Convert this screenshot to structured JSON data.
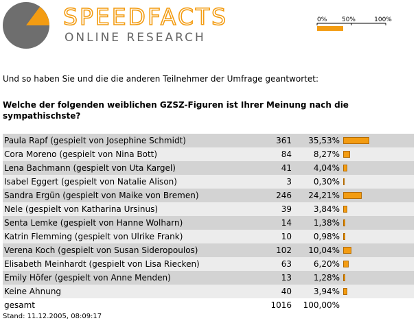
{
  "header": {
    "logo_title": "SPEEDFACTS",
    "logo_subtitle": "ONLINE RESEARCH",
    "scale": {
      "ticks": [
        {
          "value": 0,
          "label": "0%"
        },
        {
          "value": 50,
          "label": "50%"
        },
        {
          "value": 100,
          "label": "100%"
        }
      ]
    }
  },
  "intro": "Und so haben Sie und die die anderen Teilnehmer der Umfrage geantwortet:",
  "question": "Welche der folgenden weiblichen GZSZ-Figuren ist Ihrer Meinung nach die sympathischste?",
  "table": {
    "rows": [
      {
        "name": "Paula Rapf (gespielt von Josephine Schmidt)",
        "count": 361,
        "percent": {
          "value": 35.53,
          "label": "35,53%"
        }
      },
      {
        "name": "Cora Moreno (gespielt von Nina Bott)",
        "count": 84,
        "percent": {
          "value": 8.27,
          "label": "8,27%"
        }
      },
      {
        "name": "Lena Bachmann (gespielt von Uta Kargel)",
        "count": 41,
        "percent": {
          "value": 4.04,
          "label": "4,04%"
        }
      },
      {
        "name": "Isabel Eggert (gespielt von Natalie Alison)",
        "count": 3,
        "percent": {
          "value": 0.3,
          "label": "0,30%"
        }
      },
      {
        "name": "Sandra Ergün (gespielt von Maike von Bremen)",
        "count": 246,
        "percent": {
          "value": 24.21,
          "label": "24,21%"
        }
      },
      {
        "name": "Nele (gespielt von Katharina Ursinus)",
        "count": 39,
        "percent": {
          "value": 3.84,
          "label": "3,84%"
        }
      },
      {
        "name": "Senta Lemke (gespielt von Hanne Wolharn)",
        "count": 14,
        "percent": {
          "value": 1.38,
          "label": "1,38%"
        }
      },
      {
        "name": "Katrin Flemming (gespielt von Ulrike Frank)",
        "count": 10,
        "percent": {
          "value": 0.98,
          "label": "0,98%"
        }
      },
      {
        "name": "Verena Koch (gespielt von Susan Sideropoulos)",
        "count": 102,
        "percent": {
          "value": 10.04,
          "label": "10,04%"
        }
      },
      {
        "name": "Elisabeth Meinhardt (gespielt von Lisa Riecken)",
        "count": 63,
        "percent": {
          "value": 6.2,
          "label": "6,20%"
        }
      },
      {
        "name": "Emily Höfer (gespielt von Anne Menden)",
        "count": 13,
        "percent": {
          "value": 1.28,
          "label": "1,28%"
        }
      },
      {
        "name": "Keine Ahnung",
        "count": 40,
        "percent": {
          "value": 3.94,
          "label": "3,94%"
        }
      }
    ],
    "total": {
      "name": "gesamt",
      "count": 1016,
      "percent": {
        "value": 100,
        "label": "100,00%"
      }
    }
  },
  "footer": "Stand: 11.12.2005, 08:09:17"
}
